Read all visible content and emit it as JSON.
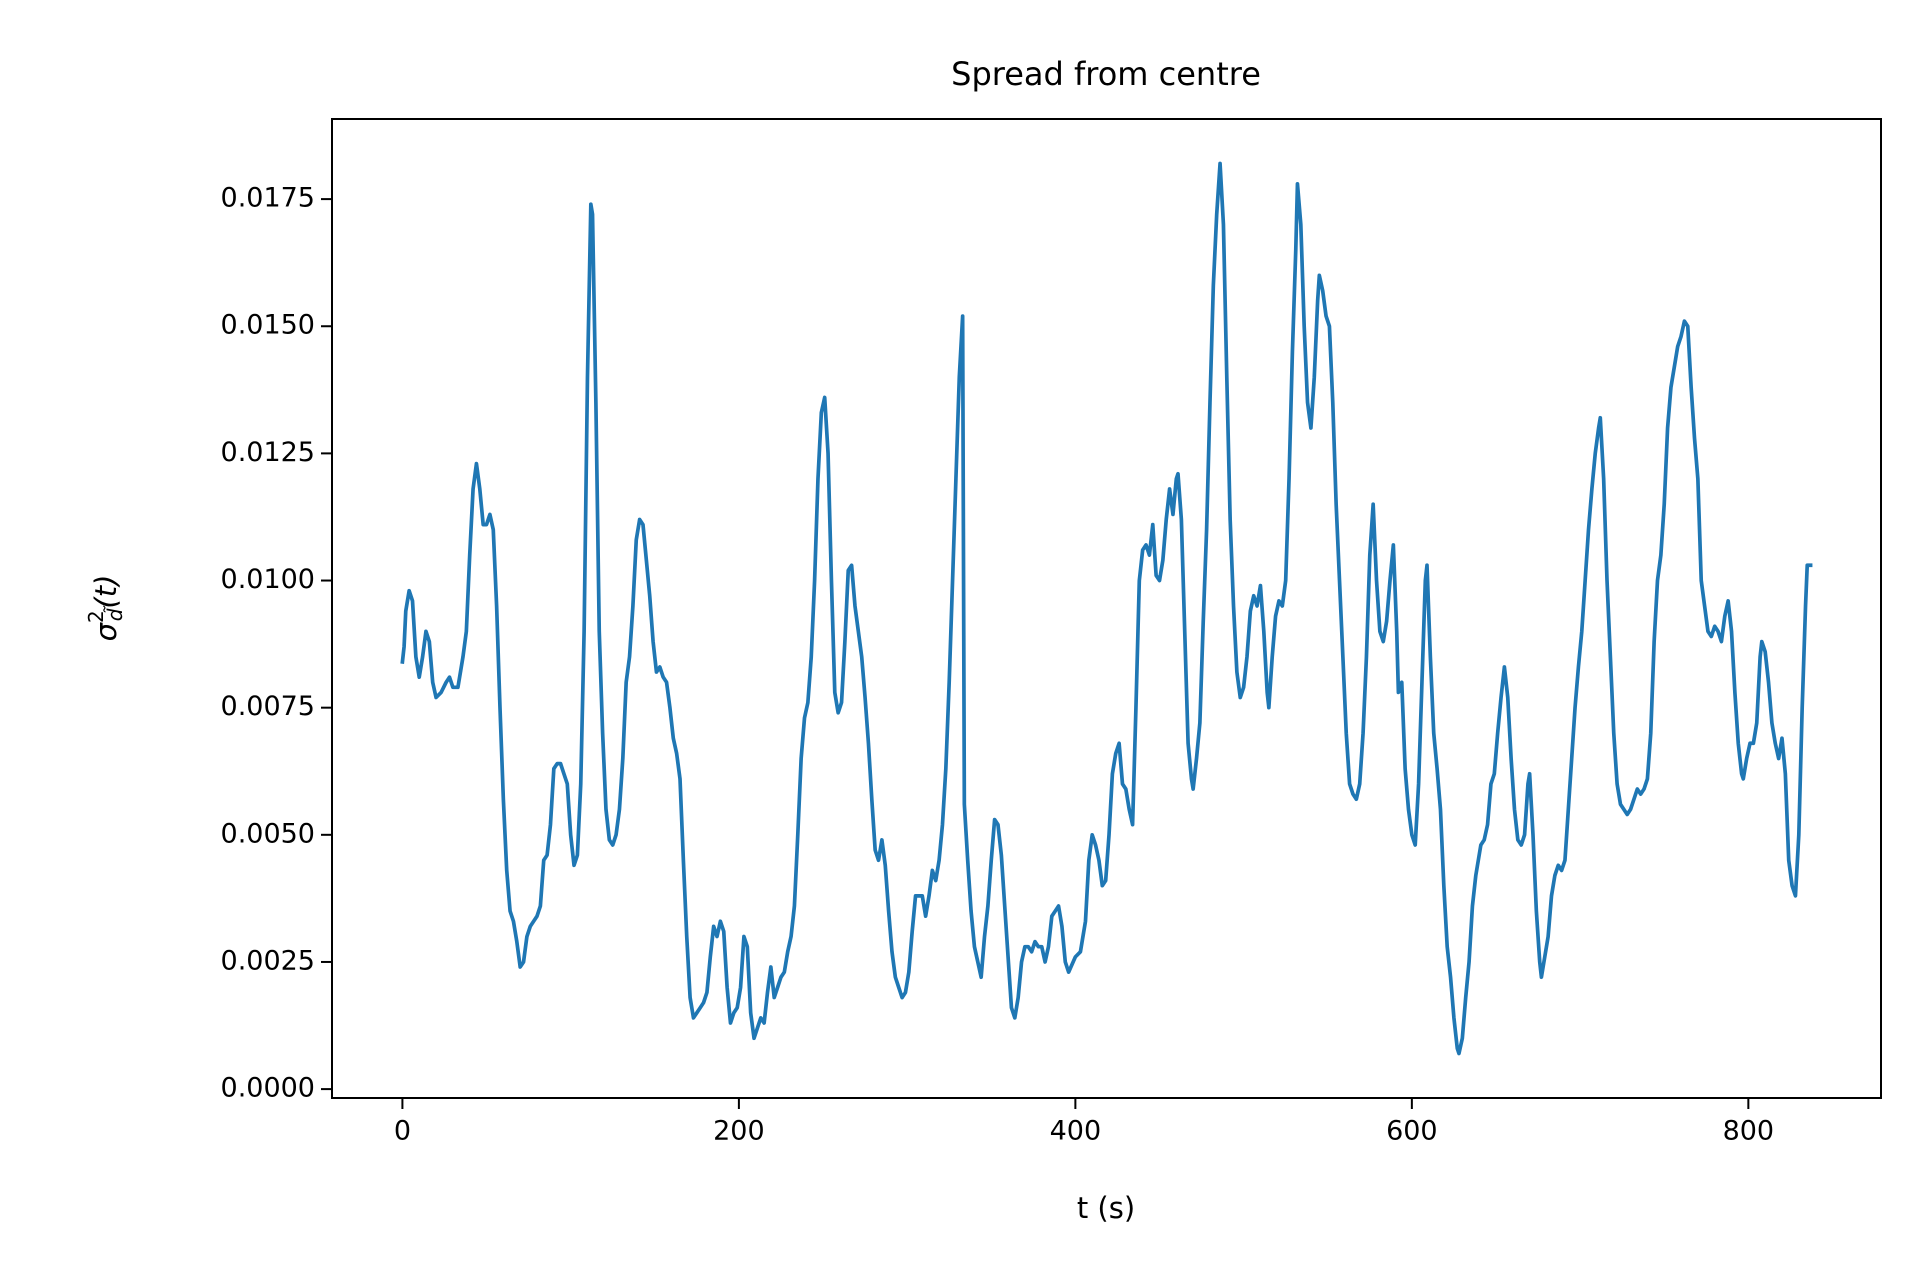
{
  "chart_data": {
    "type": "line",
    "title": "Spread from centre",
    "xlabel": "t (s)",
    "ylabel": [
      "σ",
      "2",
      "d̃",
      "(t)"
    ],
    "color": "#1f77b4",
    "xlim": [
      -41.85,
      878.85
    ],
    "ylim": [
      -0.000175,
      0.019075
    ],
    "xticks": [
      0,
      200,
      400,
      600,
      800
    ],
    "yticks": [
      {
        "value": 0,
        "label": "0.0000"
      },
      {
        "value": 0.0025,
        "label": "0.0025"
      },
      {
        "value": 0.005,
        "label": "0.0050"
      },
      {
        "value": 0.0075,
        "label": "0.0075"
      },
      {
        "value": 0.01,
        "label": "0.0100"
      },
      {
        "value": 0.0125,
        "label": "0.0125"
      },
      {
        "value": 0.015,
        "label": "0.0150"
      },
      {
        "value": 0.0175,
        "label": "0.0175"
      }
    ],
    "x": [
      0,
      1,
      2,
      4,
      6,
      8,
      10,
      12,
      14,
      16,
      18,
      20,
      23,
      26,
      28,
      30,
      33,
      36,
      38,
      40,
      42,
      44,
      46,
      48,
      50,
      52,
      54,
      56,
      58,
      60,
      62,
      64,
      66,
      68,
      70,
      72,
      74,
      76,
      78,
      80,
      82,
      84,
      86,
      88,
      90,
      92,
      94,
      96,
      98,
      100,
      102,
      104,
      106,
      108,
      110,
      112,
      113,
      115,
      117,
      119,
      121,
      123,
      125,
      127,
      129,
      131,
      133,
      135,
      137,
      139,
      141,
      143,
      145,
      147,
      149,
      151,
      153,
      155,
      157,
      159,
      161,
      163,
      165,
      167,
      169,
      171,
      173,
      175,
      177,
      179,
      181,
      183,
      185,
      187,
      189,
      191,
      193,
      195,
      197,
      199,
      201,
      203,
      205,
      207,
      209,
      211,
      213,
      215,
      217,
      219,
      221,
      223,
      225,
      227,
      229,
      231,
      233,
      235,
      237,
      239,
      241,
      243,
      245,
      247,
      249,
      251,
      253,
      255,
      257,
      259,
      261,
      263,
      265,
      267,
      269,
      271,
      273,
      275,
      277,
      279,
      281,
      283,
      285,
      287,
      289,
      291,
      293,
      295,
      297,
      299,
      301,
      303,
      305,
      307,
      309,
      311,
      313,
      315,
      317,
      319,
      321,
      323,
      325,
      327,
      329,
      331,
      333,
      334,
      336,
      338,
      340,
      342,
      344,
      346,
      348,
      350,
      352,
      354,
      356,
      358,
      360,
      362,
      364,
      366,
      368,
      370,
      372,
      374,
      376,
      378,
      380,
      382,
      384,
      386,
      388,
      390,
      392,
      394,
      396,
      400,
      403,
      406,
      408,
      410,
      412,
      414,
      416,
      418,
      420,
      422,
      424,
      426,
      428,
      430,
      432,
      434,
      436,
      438,
      440,
      442,
      444,
      446,
      448,
      450,
      452,
      454,
      456,
      458,
      460,
      461,
      463,
      465,
      467,
      469,
      470,
      472,
      474,
      476,
      478,
      480,
      482,
      484,
      486,
      488,
      490,
      492,
      494,
      496,
      498,
      500,
      502,
      504,
      506,
      508,
      510,
      512,
      514,
      515,
      517,
      519,
      521,
      523,
      525,
      527,
      529,
      531,
      532,
      534,
      536,
      538,
      540,
      542,
      544,
      545,
      547,
      549,
      551,
      553,
      555,
      557,
      559,
      561,
      563,
      565,
      567,
      569,
      571,
      573,
      575,
      577,
      579,
      581,
      583,
      585,
      587,
      589,
      591,
      592,
      594,
      596,
      598,
      600,
      602,
      604,
      606,
      608,
      609,
      611,
      613,
      615,
      617,
      619,
      621,
      623,
      625,
      627,
      628,
      630,
      632,
      634,
      636,
      638,
      641,
      643,
      645,
      647,
      649,
      651,
      653,
      655,
      657,
      659,
      661,
      663,
      665,
      667,
      669,
      670,
      672,
      674,
      676,
      677,
      679,
      681,
      683,
      685,
      687,
      689,
      691,
      693,
      695,
      697,
      699,
      701,
      703,
      705,
      707,
      709,
      711,
      712,
      714,
      716,
      718,
      720,
      722,
      724,
      726,
      728,
      730,
      732,
      734,
      736,
      738,
      740,
      742,
      744,
      746,
      748,
      750,
      752,
      754,
      756,
      758,
      760,
      762,
      764,
      766,
      768,
      770,
      772,
      774,
      776,
      778,
      780,
      782,
      784,
      786,
      788,
      790,
      792,
      794,
      796,
      797,
      799,
      801,
      803,
      805,
      807,
      808,
      810,
      812,
      814,
      816,
      818,
      820,
      822,
      824,
      826,
      828,
      830,
      832,
      834,
      835,
      837
    ],
    "values": [
      0.0084,
      0.0087,
      0.0094,
      0.0098,
      0.0096,
      0.0085,
      0.0081,
      0.0085,
      0.009,
      0.0088,
      0.008,
      0.0077,
      0.0078,
      0.008,
      0.0081,
      0.0079,
      0.0079,
      0.0085,
      0.009,
      0.0105,
      0.0118,
      0.0123,
      0.0118,
      0.0111,
      0.0111,
      0.0113,
      0.011,
      0.0095,
      0.0075,
      0.0057,
      0.0043,
      0.0035,
      0.0033,
      0.0029,
      0.0024,
      0.0025,
      0.003,
      0.0032,
      0.0033,
      0.0034,
      0.0036,
      0.0045,
      0.0046,
      0.0052,
      0.0063,
      0.0064,
      0.0064,
      0.0062,
      0.006,
      0.005,
      0.0044,
      0.0046,
      0.006,
      0.009,
      0.014,
      0.0174,
      0.0172,
      0.0135,
      0.009,
      0.007,
      0.0055,
      0.0049,
      0.0048,
      0.005,
      0.0055,
      0.0065,
      0.008,
      0.0085,
      0.0095,
      0.0108,
      0.0112,
      0.0111,
      0.0104,
      0.0097,
      0.0088,
      0.0082,
      0.0083,
      0.0081,
      0.008,
      0.0075,
      0.0069,
      0.0066,
      0.0061,
      0.0045,
      0.003,
      0.0018,
      0.0014,
      0.0015,
      0.0016,
      0.0017,
      0.0019,
      0.0026,
      0.0032,
      0.003,
      0.0033,
      0.0031,
      0.002,
      0.0013,
      0.0015,
      0.0016,
      0.002,
      0.003,
      0.0028,
      0.0015,
      0.001,
      0.0012,
      0.0014,
      0.0013,
      0.0019,
      0.0024,
      0.0018,
      0.002,
      0.0022,
      0.0023,
      0.0027,
      0.003,
      0.0036,
      0.005,
      0.0065,
      0.0073,
      0.0076,
      0.0085,
      0.01,
      0.012,
      0.0133,
      0.0136,
      0.0125,
      0.01,
      0.0078,
      0.0074,
      0.0076,
      0.0088,
      0.0102,
      0.0103,
      0.0095,
      0.009,
      0.0085,
      0.0077,
      0.0068,
      0.0057,
      0.0047,
      0.0045,
      0.0049,
      0.0044,
      0.0035,
      0.0027,
      0.0022,
      0.002,
      0.0018,
      0.0019,
      0.0023,
      0.0031,
      0.0038,
      0.0038,
      0.0038,
      0.0034,
      0.0038,
      0.0043,
      0.0041,
      0.0045,
      0.0052,
      0.0063,
      0.008,
      0.01,
      0.012,
      0.014,
      0.0152,
      0.0056,
      0.0045,
      0.0035,
      0.0028,
      0.0025,
      0.0022,
      0.003,
      0.0036,
      0.0045,
      0.0053,
      0.0052,
      0.0046,
      0.0036,
      0.0026,
      0.0016,
      0.0014,
      0.0018,
      0.0025,
      0.0028,
      0.0028,
      0.0027,
      0.0029,
      0.0028,
      0.0028,
      0.0025,
      0.0028,
      0.0034,
      0.0035,
      0.0036,
      0.0032,
      0.0025,
      0.0023,
      0.0026,
      0.0027,
      0.0033,
      0.0045,
      0.005,
      0.0048,
      0.0045,
      0.004,
      0.0041,
      0.005,
      0.0062,
      0.0066,
      0.0068,
      0.006,
      0.0059,
      0.0055,
      0.0052,
      0.0075,
      0.01,
      0.0106,
      0.0107,
      0.0105,
      0.0111,
      0.0101,
      0.01,
      0.0104,
      0.0112,
      0.0118,
      0.0113,
      0.012,
      0.0121,
      0.0112,
      0.009,
      0.0068,
      0.0061,
      0.0059,
      0.0065,
      0.0072,
      0.0092,
      0.011,
      0.0135,
      0.0158,
      0.0172,
      0.0182,
      0.017,
      0.014,
      0.0112,
      0.0095,
      0.0082,
      0.0077,
      0.0079,
      0.0085,
      0.0094,
      0.0097,
      0.0095,
      0.0099,
      0.009,
      0.0078,
      0.0075,
      0.0085,
      0.0093,
      0.0096,
      0.0095,
      0.01,
      0.012,
      0.0145,
      0.0165,
      0.0178,
      0.017,
      0.015,
      0.0135,
      0.013,
      0.014,
      0.0155,
      0.016,
      0.0157,
      0.0152,
      0.015,
      0.0135,
      0.0115,
      0.01,
      0.0085,
      0.007,
      0.006,
      0.0058,
      0.0057,
      0.006,
      0.007,
      0.0085,
      0.0105,
      0.0115,
      0.01,
      0.009,
      0.0088,
      0.0092,
      0.01,
      0.0107,
      0.009,
      0.0078,
      0.008,
      0.0063,
      0.0055,
      0.005,
      0.0048,
      0.006,
      0.008,
      0.01,
      0.0103,
      0.0085,
      0.007,
      0.0063,
      0.0055,
      0.004,
      0.0028,
      0.0022,
      0.0014,
      0.0008,
      0.0007,
      0.001,
      0.0018,
      0.0025,
      0.0036,
      0.0042,
      0.0048,
      0.0049,
      0.0052,
      0.006,
      0.0062,
      0.007,
      0.0077,
      0.0083,
      0.0077,
      0.0065,
      0.0055,
      0.0049,
      0.0048,
      0.005,
      0.006,
      0.0062,
      0.005,
      0.0035,
      0.0025,
      0.0022,
      0.0026,
      0.003,
      0.0038,
      0.0042,
      0.0044,
      0.0043,
      0.0045,
      0.0055,
      0.0065,
      0.0075,
      0.0083,
      0.009,
      0.01,
      0.011,
      0.0118,
      0.0125,
      0.013,
      0.0132,
      0.012,
      0.01,
      0.0085,
      0.007,
      0.006,
      0.0056,
      0.0055,
      0.0054,
      0.0055,
      0.0057,
      0.0059,
      0.0058,
      0.0059,
      0.0061,
      0.007,
      0.0088,
      0.01,
      0.0105,
      0.0115,
      0.013,
      0.0138,
      0.0142,
      0.0146,
      0.0148,
      0.0151,
      0.015,
      0.0138,
      0.0128,
      0.012,
      0.01,
      0.0095,
      0.009,
      0.0089,
      0.0091,
      0.009,
      0.0088,
      0.0093,
      0.0096,
      0.009,
      0.0078,
      0.0068,
      0.0062,
      0.0061,
      0.0065,
      0.0068,
      0.0068,
      0.0072,
      0.0085,
      0.0088,
      0.0086,
      0.008,
      0.0072,
      0.0068,
      0.0065,
      0.0069,
      0.0062,
      0.0045,
      0.004,
      0.0038,
      0.005,
      0.0075,
      0.0095,
      0.0103,
      0.0103
    ]
  }
}
